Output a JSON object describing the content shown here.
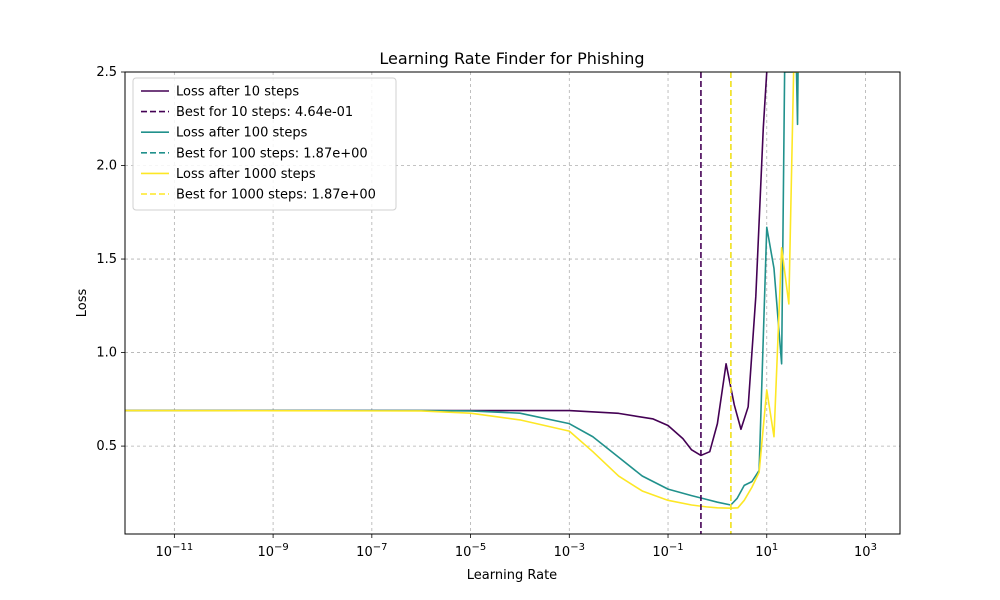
{
  "chart_data": {
    "type": "line",
    "title": "Learning Rate Finder for Phishing",
    "xlabel": "Learning Rate",
    "ylabel": "Loss",
    "xscale": "log",
    "xlim": [
      1e-12,
      5000
    ],
    "ylim": [
      0.03,
      2.5
    ],
    "grid": true,
    "legend_position": "top-left",
    "x_ticks": [
      1e-11,
      1e-09,
      1e-07,
      1e-05,
      0.001,
      0.1,
      10,
      1000
    ],
    "x_tick_labels": [
      {
        "base": "10",
        "exp": "−11"
      },
      {
        "base": "10",
        "exp": "−9"
      },
      {
        "base": "10",
        "exp": "−7"
      },
      {
        "base": "10",
        "exp": "−5"
      },
      {
        "base": "10",
        "exp": "−3"
      },
      {
        "base": "10",
        "exp": "−1"
      },
      {
        "base": "10",
        "exp": "1"
      },
      {
        "base": "10",
        "exp": "3"
      }
    ],
    "y_ticks": [
      0.5,
      1.0,
      1.5,
      2.0,
      2.5
    ],
    "y_tick_labels": [
      "0.5",
      "1.0",
      "1.5",
      "2.0",
      "2.5"
    ],
    "series": [
      {
        "name": "Loss after 10 steps",
        "color": "#440154",
        "points": [
          [
            1e-12,
            0.69
          ],
          [
            1e-09,
            0.69
          ],
          [
            1e-06,
            0.69
          ],
          [
            0.0001,
            0.69
          ],
          [
            0.001,
            0.69
          ],
          [
            0.01,
            0.675
          ],
          [
            0.05,
            0.645
          ],
          [
            0.1,
            0.61
          ],
          [
            0.2,
            0.54
          ],
          [
            0.3,
            0.48
          ],
          [
            0.464,
            0.45
          ],
          [
            0.7,
            0.47
          ],
          [
            1.0,
            0.62
          ],
          [
            1.5,
            0.94
          ],
          [
            2.2,
            0.72
          ],
          [
            3.0,
            0.59
          ],
          [
            4.2,
            0.71
          ],
          [
            6.0,
            1.3
          ],
          [
            8.5,
            2.2
          ],
          [
            10,
            2.5
          ]
        ]
      },
      {
        "name": "Loss after 100 steps",
        "color": "#21918c",
        "points": [
          [
            1e-12,
            0.69
          ],
          [
            1e-06,
            0.69
          ],
          [
            1e-05,
            0.688
          ],
          [
            0.0001,
            0.676
          ],
          [
            0.001,
            0.62
          ],
          [
            0.003,
            0.55
          ],
          [
            0.01,
            0.44
          ],
          [
            0.03,
            0.34
          ],
          [
            0.1,
            0.27
          ],
          [
            0.3,
            0.235
          ],
          [
            0.6,
            0.215
          ],
          [
            1.0,
            0.2
          ],
          [
            1.87,
            0.185
          ],
          [
            2.5,
            0.22
          ],
          [
            3.5,
            0.29
          ],
          [
            5.0,
            0.31
          ],
          [
            7.0,
            0.37
          ],
          [
            10,
            1.67
          ],
          [
            14,
            1.45
          ],
          [
            20,
            0.94
          ],
          [
            23,
            2.5
          ],
          [
            40,
            2.5
          ],
          [
            42,
            2.22
          ],
          [
            43,
            2.5
          ]
        ]
      },
      {
        "name": "Loss after 1000 steps",
        "color": "#fde725",
        "points": [
          [
            1e-12,
            0.69
          ],
          [
            1e-06,
            0.688
          ],
          [
            1e-05,
            0.676
          ],
          [
            0.0001,
            0.64
          ],
          [
            0.001,
            0.58
          ],
          [
            0.003,
            0.47
          ],
          [
            0.01,
            0.34
          ],
          [
            0.03,
            0.26
          ],
          [
            0.1,
            0.21
          ],
          [
            0.3,
            0.185
          ],
          [
            0.6,
            0.175
          ],
          [
            1.0,
            0.17
          ],
          [
            1.87,
            0.168
          ],
          [
            2.6,
            0.17
          ],
          [
            3.5,
            0.21
          ],
          [
            5.0,
            0.28
          ],
          [
            7.0,
            0.36
          ],
          [
            10,
            0.8
          ],
          [
            14,
            0.55
          ],
          [
            20,
            1.56
          ],
          [
            28,
            1.26
          ],
          [
            35,
            2.5
          ],
          [
            45,
            2.5
          ]
        ]
      }
    ],
    "vlines": [
      {
        "name": "Best for 10 steps: 4.64e-01",
        "x": 0.464,
        "color": "#440154"
      },
      {
        "name": "Best for 100 steps: 1.87e+00",
        "x": 1.87,
        "color": "#21918c"
      },
      {
        "name": "Best for 1000 steps: 1.87e+00",
        "x": 1.87,
        "color": "#fde725"
      }
    ],
    "legend": [
      {
        "label": "Loss after 10 steps",
        "color": "#440154",
        "style": "solid"
      },
      {
        "label": "Best for 10 steps: 4.64e-01",
        "color": "#440154",
        "style": "dashed"
      },
      {
        "label": "Loss after 100 steps",
        "color": "#21918c",
        "style": "solid"
      },
      {
        "label": "Best for 100 steps: 1.87e+00",
        "color": "#21918c",
        "style": "dashed"
      },
      {
        "label": "Loss after 1000 steps",
        "color": "#fde725",
        "style": "solid"
      },
      {
        "label": "Best for 1000 steps: 1.87e+00",
        "color": "#fde725",
        "style": "dashed"
      }
    ]
  }
}
